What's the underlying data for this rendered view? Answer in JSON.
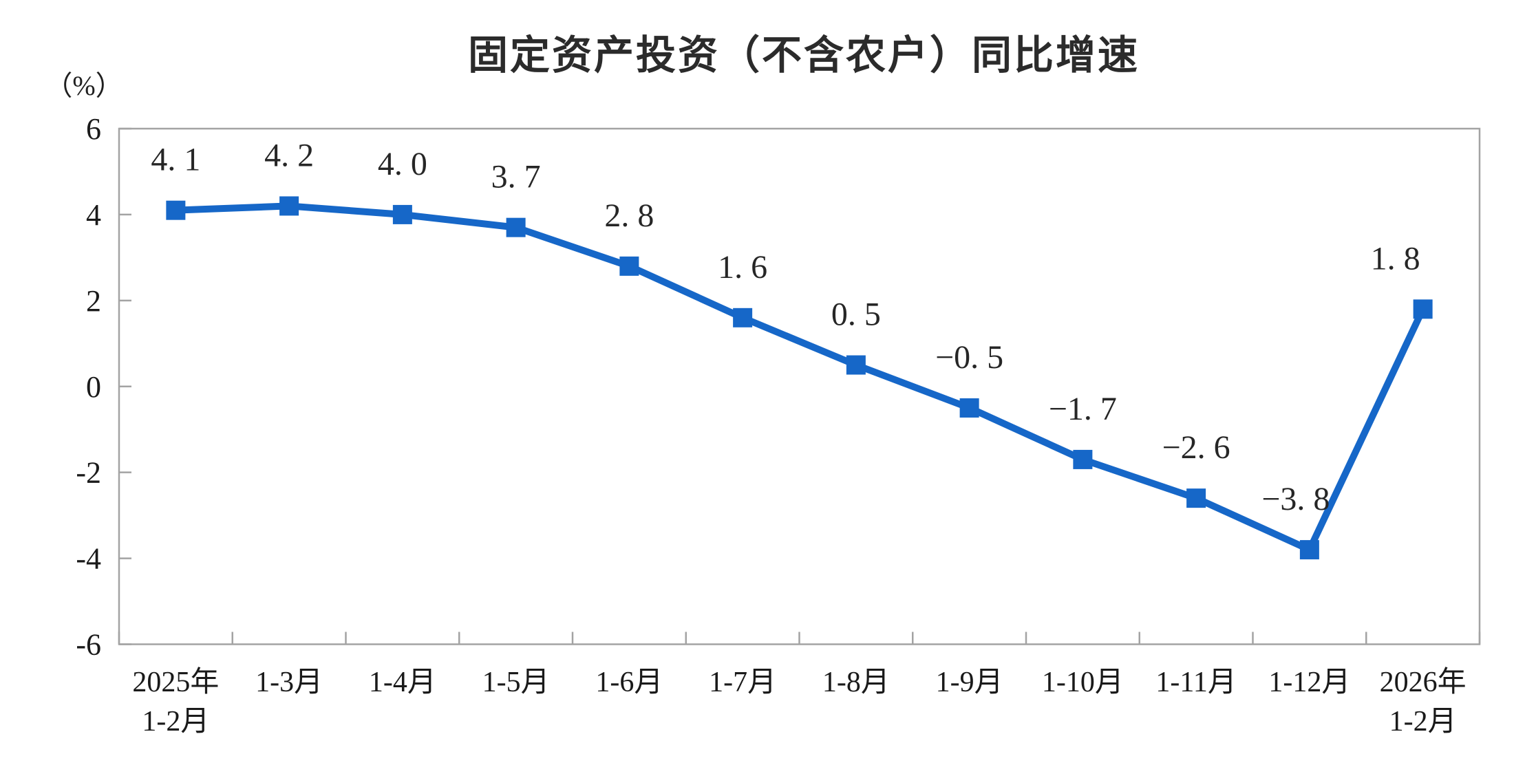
{
  "chart_data": {
    "type": "line",
    "title": "固定资产投资（不含农户）同比增速",
    "unit_label": "（%）",
    "categories": [
      "2025年\n1-2月",
      "1-3月",
      "1-4月",
      "1-5月",
      "1-6月",
      "1-7月",
      "1-8月",
      "1-9月",
      "1-10月",
      "1-11月",
      "1-12月",
      "2026年\n1-2月"
    ],
    "series": [
      {
        "name": "固定资产投资（不含农户）同比增速",
        "values": [
          4.1,
          4.2,
          4.0,
          3.7,
          2.8,
          1.6,
          0.5,
          -0.5,
          -1.7,
          -2.6,
          -3.8,
          1.8
        ]
      }
    ],
    "point_labels": [
      "4. 1",
      "4. 2",
      "4. 0",
      "3. 7",
      "2. 8",
      "1. 6",
      "0. 5",
      "−0. 5",
      "−1. 7",
      "−2. 6",
      "−3. 8",
      "1. 8"
    ],
    "xlabel": "",
    "ylabel": "（%）",
    "ylim": [
      -6,
      6
    ],
    "yticks": [
      "6",
      "4",
      "2",
      "0",
      "-2",
      "-4",
      "-6"
    ],
    "grid": false,
    "legend_position": "none",
    "marker": "square",
    "colors": {
      "series": "#1667C8",
      "axis": "#A3A3A3",
      "text": "#1a1a1a"
    }
  }
}
